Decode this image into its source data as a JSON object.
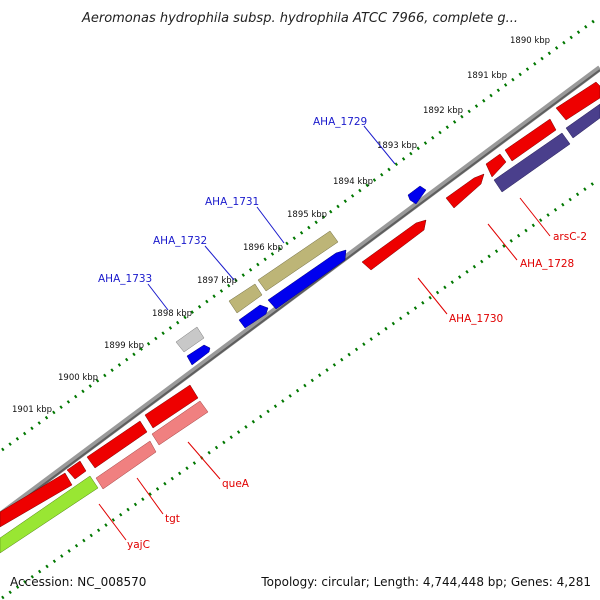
{
  "title": "Aeromonas hydrophila subsp. hydrophila ATCC 7966, complete g...",
  "footer": {
    "accession": "Accession: NC_008570",
    "topology": "Topology: circular; Length: 4,744,448 bp; Genes: 4,281"
  },
  "kbp_ticks": [
    "1890 kbp",
    "1891 kbp",
    "1892 kbp",
    "1893 kbp",
    "1894 kbp",
    "1895 kbp",
    "1896 kbp",
    "1897 kbp",
    "1898 kbp",
    "1899 kbp",
    "1900 kbp",
    "1901 kbp"
  ],
  "gene_labels": {
    "AHA_1729": "AHA_1729",
    "AHA_1731": "AHA_1731",
    "AHA_1732": "AHA_1732",
    "AHA_1733": "AHA_1733",
    "arsC_2": "arsC-2",
    "AHA_1728": "AHA_1728",
    "AHA_1730": "AHA_1730",
    "queA": "queA",
    "tgt": "tgt",
    "yajC": "yajC"
  },
  "colors": {
    "red": "#ee0000",
    "blue": "#0000ee",
    "olive": "#bdb577",
    "gray": "#c8c8c8",
    "slate": "#4a3f8c",
    "pink": "#f08080",
    "lime": "#99e633",
    "backbone": "#808080",
    "tick_green": "#007700",
    "leader_blue": "#1a1acc",
    "leader_red": "#e00000"
  }
}
